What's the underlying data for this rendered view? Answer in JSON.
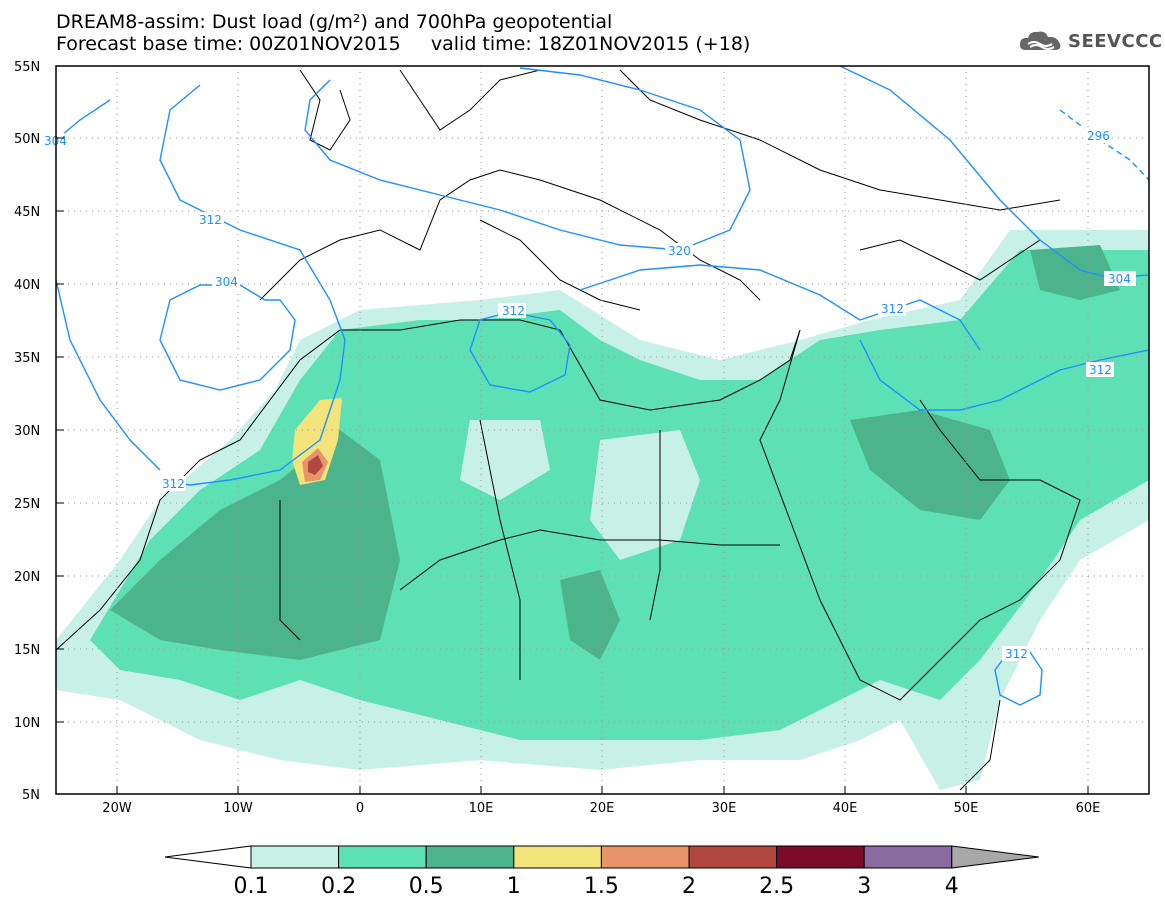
{
  "title": {
    "line1": "DREAM8-assim: Dust load (g/m²) and 700hPa geopotential",
    "line2": "Forecast base time: 00Z01NOV2015     valid time: 18Z01NOV2015 (+18)"
  },
  "logo": {
    "text": "SEEVCCC",
    "icon": "cloud-icon"
  },
  "map": {
    "lat_labels": [
      "55N",
      "50N",
      "45N",
      "40N",
      "35N",
      "30N",
      "25N",
      "20N",
      "15N",
      "10N",
      "5N"
    ],
    "lon_labels": [
      "20W",
      "10W",
      "0",
      "10E",
      "20E",
      "30E",
      "40E",
      "50E",
      "60E"
    ],
    "lat_range": [
      5,
      55
    ],
    "lon_range": [
      -25,
      65
    ],
    "contour_labels": [
      "304",
      "312",
      "304",
      "312",
      "312",
      "320",
      "312",
      "304",
      "312",
      "312",
      "296"
    ]
  },
  "colorbar": {
    "labels": [
      "0.1",
      "0.2",
      "0.5",
      "1",
      "1.5",
      "2",
      "2.5",
      "3",
      "4"
    ],
    "colors": [
      "#ffffff",
      "#c7f0e7",
      "#5ee0b5",
      "#4cb48c",
      "#f2e47a",
      "#e8946a",
      "#b2473f",
      "#7a0b2a",
      "#8a6aa0",
      "#a8a8a8"
    ]
  }
}
